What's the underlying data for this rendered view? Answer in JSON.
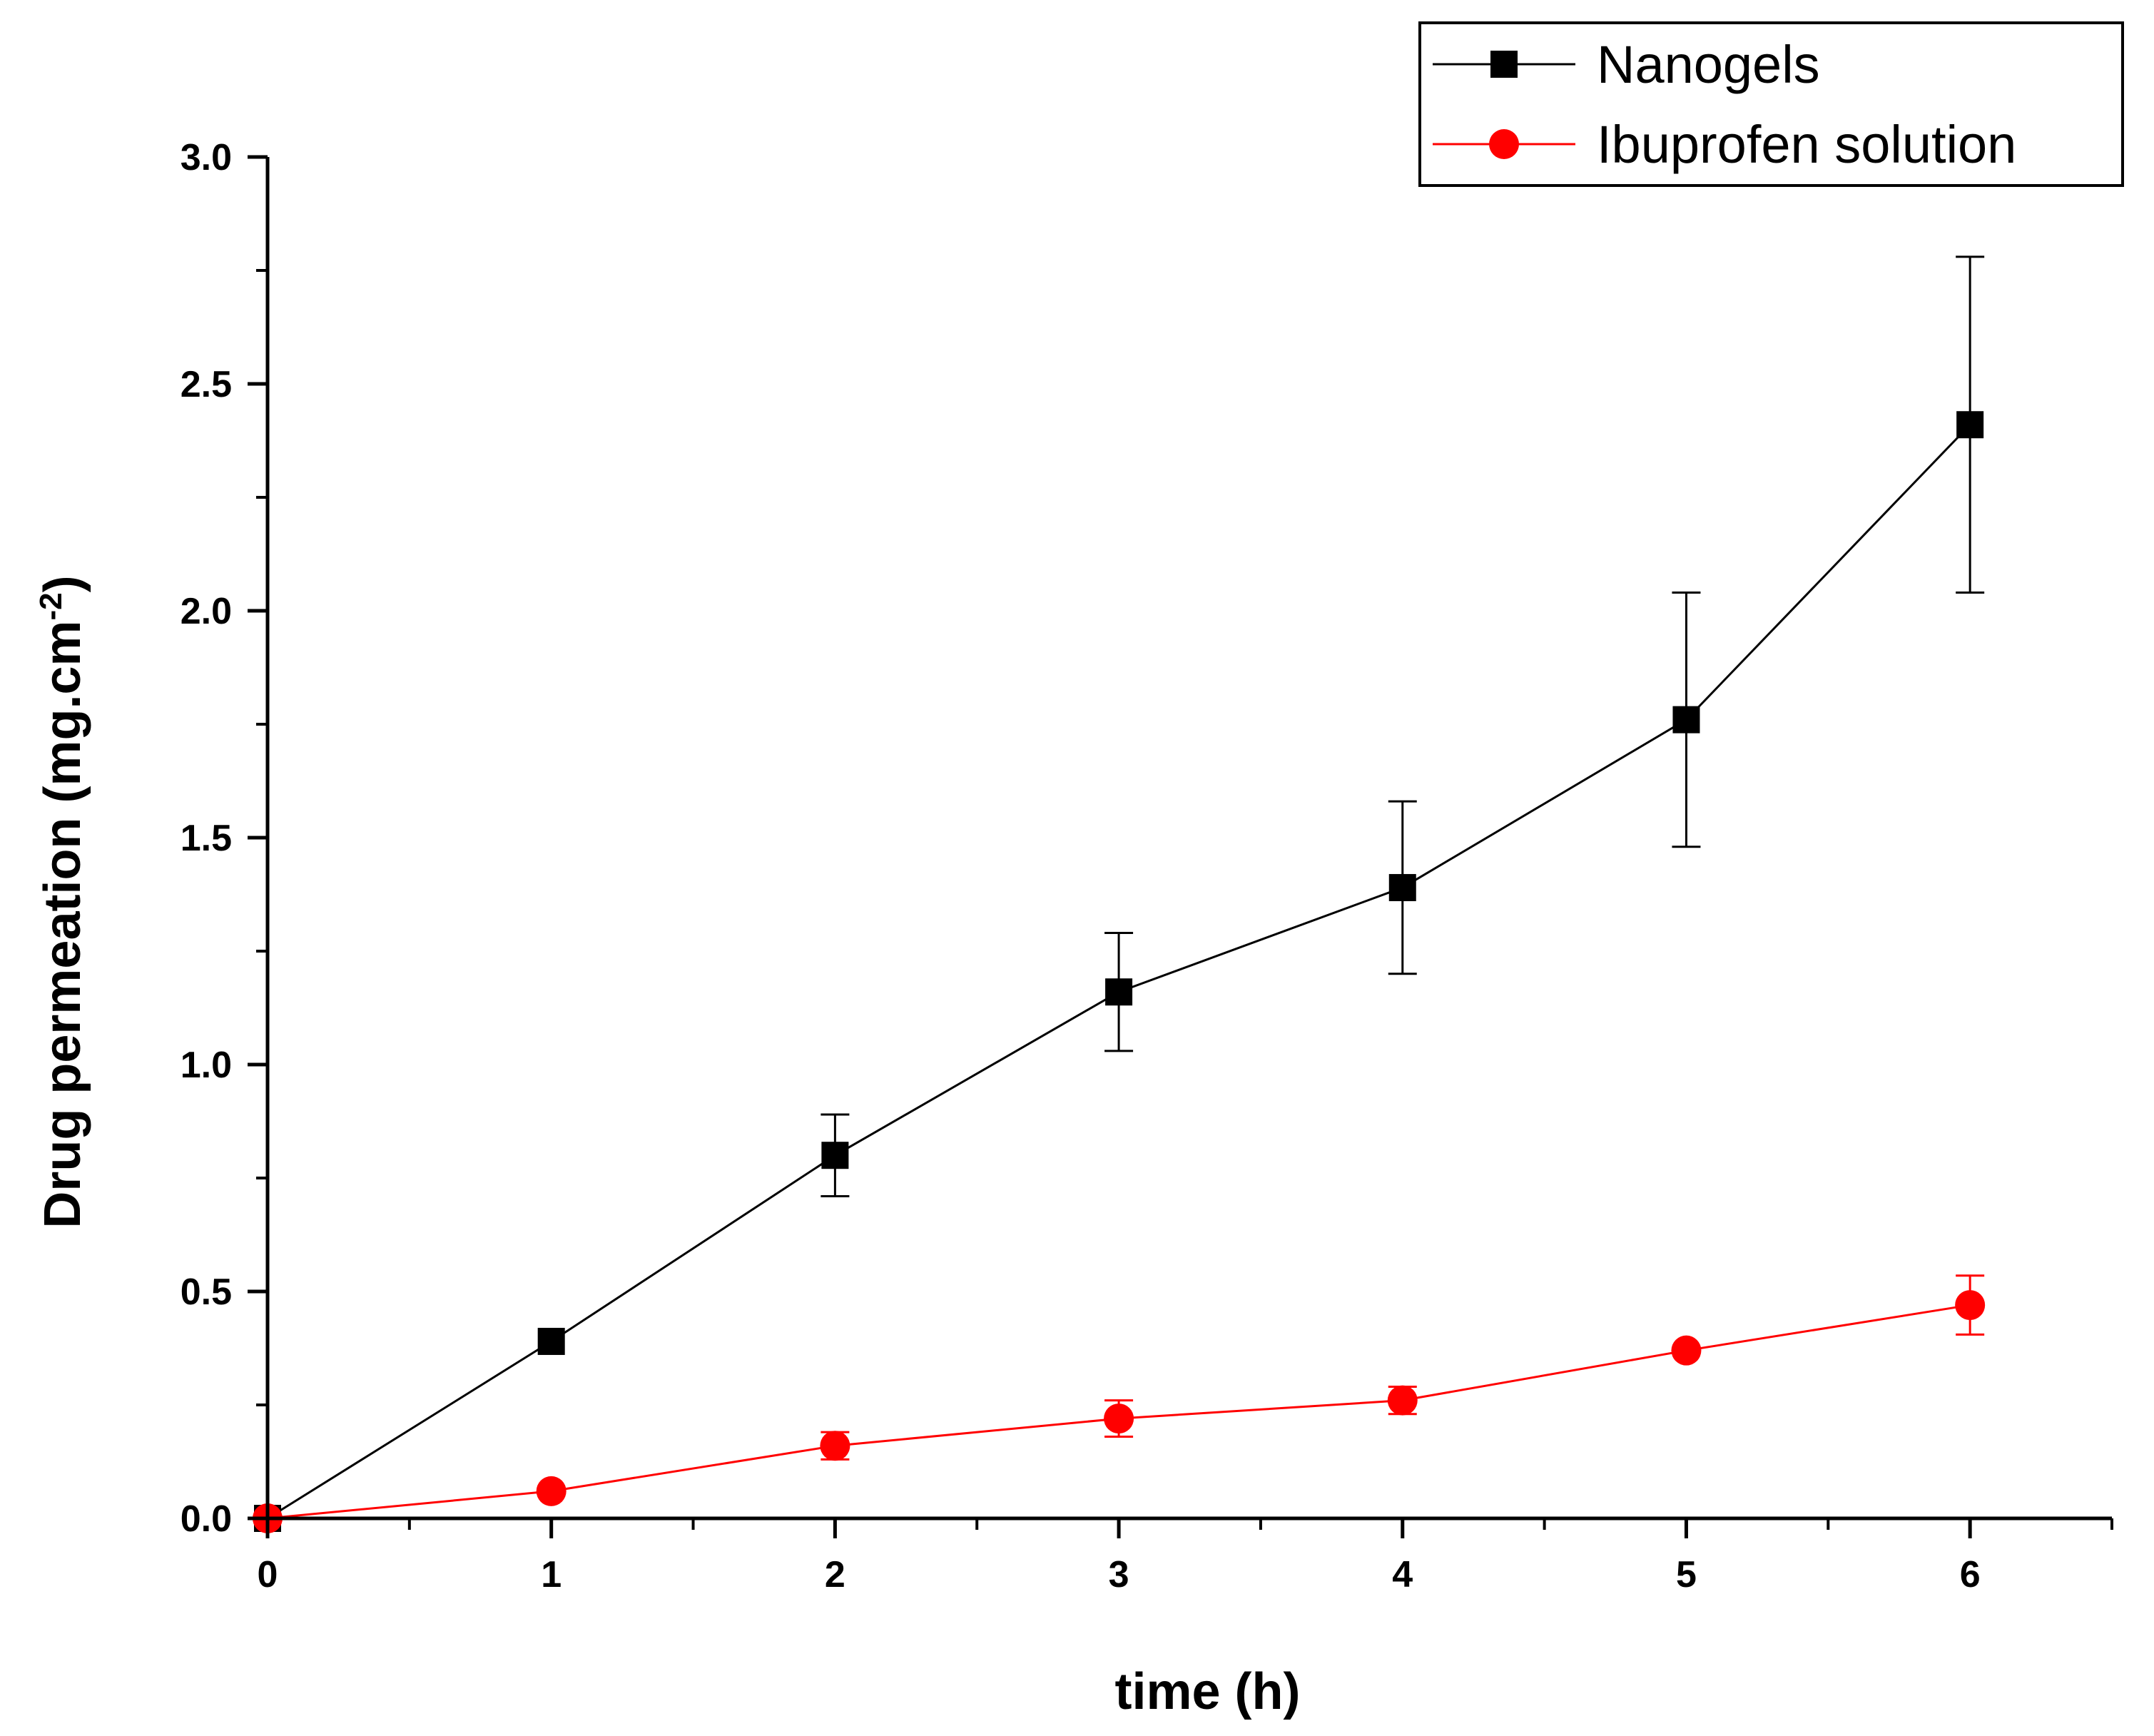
{
  "chart_data": {
    "type": "line",
    "title": "",
    "xlabel": "time (h)",
    "ylabel": "Drug permeation (mg.cm",
    "ylabel_superscript": "-2",
    "ylabel_close": ")",
    "xlim": [
      0,
      6.5
    ],
    "ylim": [
      0,
      3.0
    ],
    "x_ticks": [
      0,
      1,
      2,
      3,
      4,
      5,
      6
    ],
    "x_tick_labels": [
      "0",
      "1",
      "2",
      "3",
      "4",
      "5",
      "6"
    ],
    "x_minor_ticks": [
      0.5,
      1.5,
      2.5,
      3.5,
      4.5,
      5.5,
      6.5
    ],
    "y_ticks": [
      0,
      0.5,
      1.0,
      1.5,
      2.0,
      2.5,
      3.0
    ],
    "y_tick_labels": [
      "0.0",
      "0.5",
      "1.0",
      "1.5",
      "2.0",
      "2.5",
      "3.0"
    ],
    "y_minor_ticks": [
      0.25,
      0.75,
      1.25,
      1.75,
      2.25,
      2.75
    ],
    "grid": false,
    "legend_position": "top-right",
    "x": [
      0,
      1,
      2,
      3,
      4,
      5,
      6
    ],
    "series": [
      {
        "name": "Nanogels",
        "color": "#000000",
        "marker": "square",
        "values": [
          0,
          0.39,
          0.8,
          1.16,
          1.39,
          1.76,
          2.41
        ],
        "errors": [
          0,
          0,
          0.09,
          0.13,
          0.19,
          0.28,
          0.37
        ]
      },
      {
        "name": "Ibuprofen solution",
        "color": "#ff0000",
        "marker": "circle",
        "values": [
          0,
          0.06,
          0.16,
          0.22,
          0.26,
          0.37,
          0.47
        ],
        "errors": [
          0,
          0,
          0.03,
          0.04,
          0.03,
          0,
          0.065
        ]
      }
    ]
  }
}
